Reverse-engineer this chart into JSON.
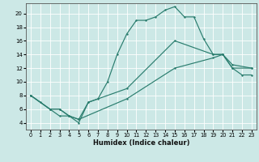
{
  "xlabel": "Humidex (Indice chaleur)",
  "background_color": "#cce8e6",
  "grid_color": "#ffffff",
  "line_color": "#2a7d6e",
  "xlim": [
    -0.5,
    23.5
  ],
  "ylim": [
    3,
    21.5
  ],
  "xticks": [
    0,
    1,
    2,
    3,
    4,
    5,
    6,
    7,
    8,
    9,
    10,
    11,
    12,
    13,
    14,
    15,
    16,
    17,
    18,
    19,
    20,
    21,
    22,
    23
  ],
  "yticks": [
    4,
    6,
    8,
    10,
    12,
    14,
    16,
    18,
    20
  ],
  "line1_x": [
    0,
    1,
    2,
    3,
    4,
    5,
    6,
    7,
    8,
    9,
    10,
    11,
    12,
    13,
    14,
    15,
    16,
    17,
    18,
    19,
    20,
    21,
    22,
    23
  ],
  "line1_y": [
    8,
    7,
    6,
    5,
    5,
    4,
    7,
    7.5,
    10,
    14,
    17,
    19,
    19,
    19.5,
    20.5,
    21,
    19.5,
    19.5,
    16.3,
    14,
    14,
    12,
    11,
    11
  ],
  "line2_x": [
    0,
    2,
    3,
    4,
    5,
    6,
    10,
    15,
    19,
    20,
    21,
    23
  ],
  "line2_y": [
    8,
    6,
    6,
    5,
    4.5,
    7,
    9,
    16,
    14,
    14,
    12.5,
    12
  ],
  "line3_x": [
    0,
    2,
    3,
    4,
    5,
    10,
    15,
    19,
    20,
    21,
    23
  ],
  "line3_y": [
    8,
    6,
    6,
    5,
    4.5,
    7.5,
    12,
    13.5,
    14,
    12,
    12
  ]
}
